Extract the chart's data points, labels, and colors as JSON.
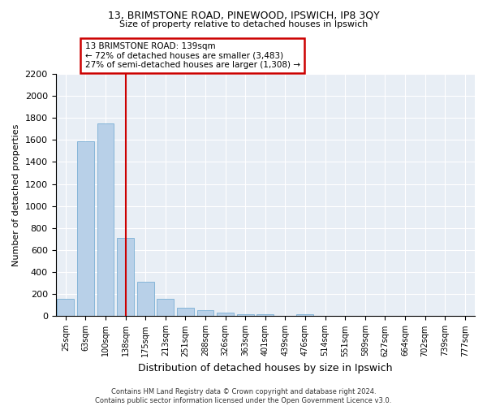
{
  "title1": "13, BRIMSTONE ROAD, PINEWOOD, IPSWICH, IP8 3QY",
  "title2": "Size of property relative to detached houses in Ipswich",
  "xlabel": "Distribution of detached houses by size in Ipswich",
  "ylabel": "Number of detached properties",
  "categories": [
    "25sqm",
    "63sqm",
    "100sqm",
    "138sqm",
    "175sqm",
    "213sqm",
    "251sqm",
    "288sqm",
    "326sqm",
    "363sqm",
    "401sqm",
    "439sqm",
    "476sqm",
    "514sqm",
    "551sqm",
    "589sqm",
    "627sqm",
    "664sqm",
    "702sqm",
    "739sqm",
    "777sqm"
  ],
  "values": [
    160,
    1590,
    1750,
    710,
    315,
    155,
    80,
    55,
    30,
    20,
    20,
    0,
    20,
    0,
    0,
    0,
    0,
    0,
    0,
    0,
    0
  ],
  "bar_color": "#b8d0e8",
  "bar_edge_color": "#7aafd4",
  "vline_x_index": 3,
  "vline_color": "#cc0000",
  "annotation_line1": "13 BRIMSTONE ROAD: 139sqm",
  "annotation_line2": "← 72% of detached houses are smaller (3,483)",
  "annotation_line3": "27% of semi-detached houses are larger (1,308) →",
  "annotation_box_color": "#cc0000",
  "ylim": [
    0,
    2200
  ],
  "yticks": [
    0,
    200,
    400,
    600,
    800,
    1000,
    1200,
    1400,
    1600,
    1800,
    2000,
    2200
  ],
  "background_color": "#e8eef5",
  "grid_color": "#ffffff",
  "title1_fontsize": 9,
  "title2_fontsize": 8,
  "ylabel_fontsize": 8,
  "xlabel_fontsize": 9,
  "footer1": "Contains HM Land Registry data © Crown copyright and database right 2024.",
  "footer2": "Contains public sector information licensed under the Open Government Licence v3.0."
}
